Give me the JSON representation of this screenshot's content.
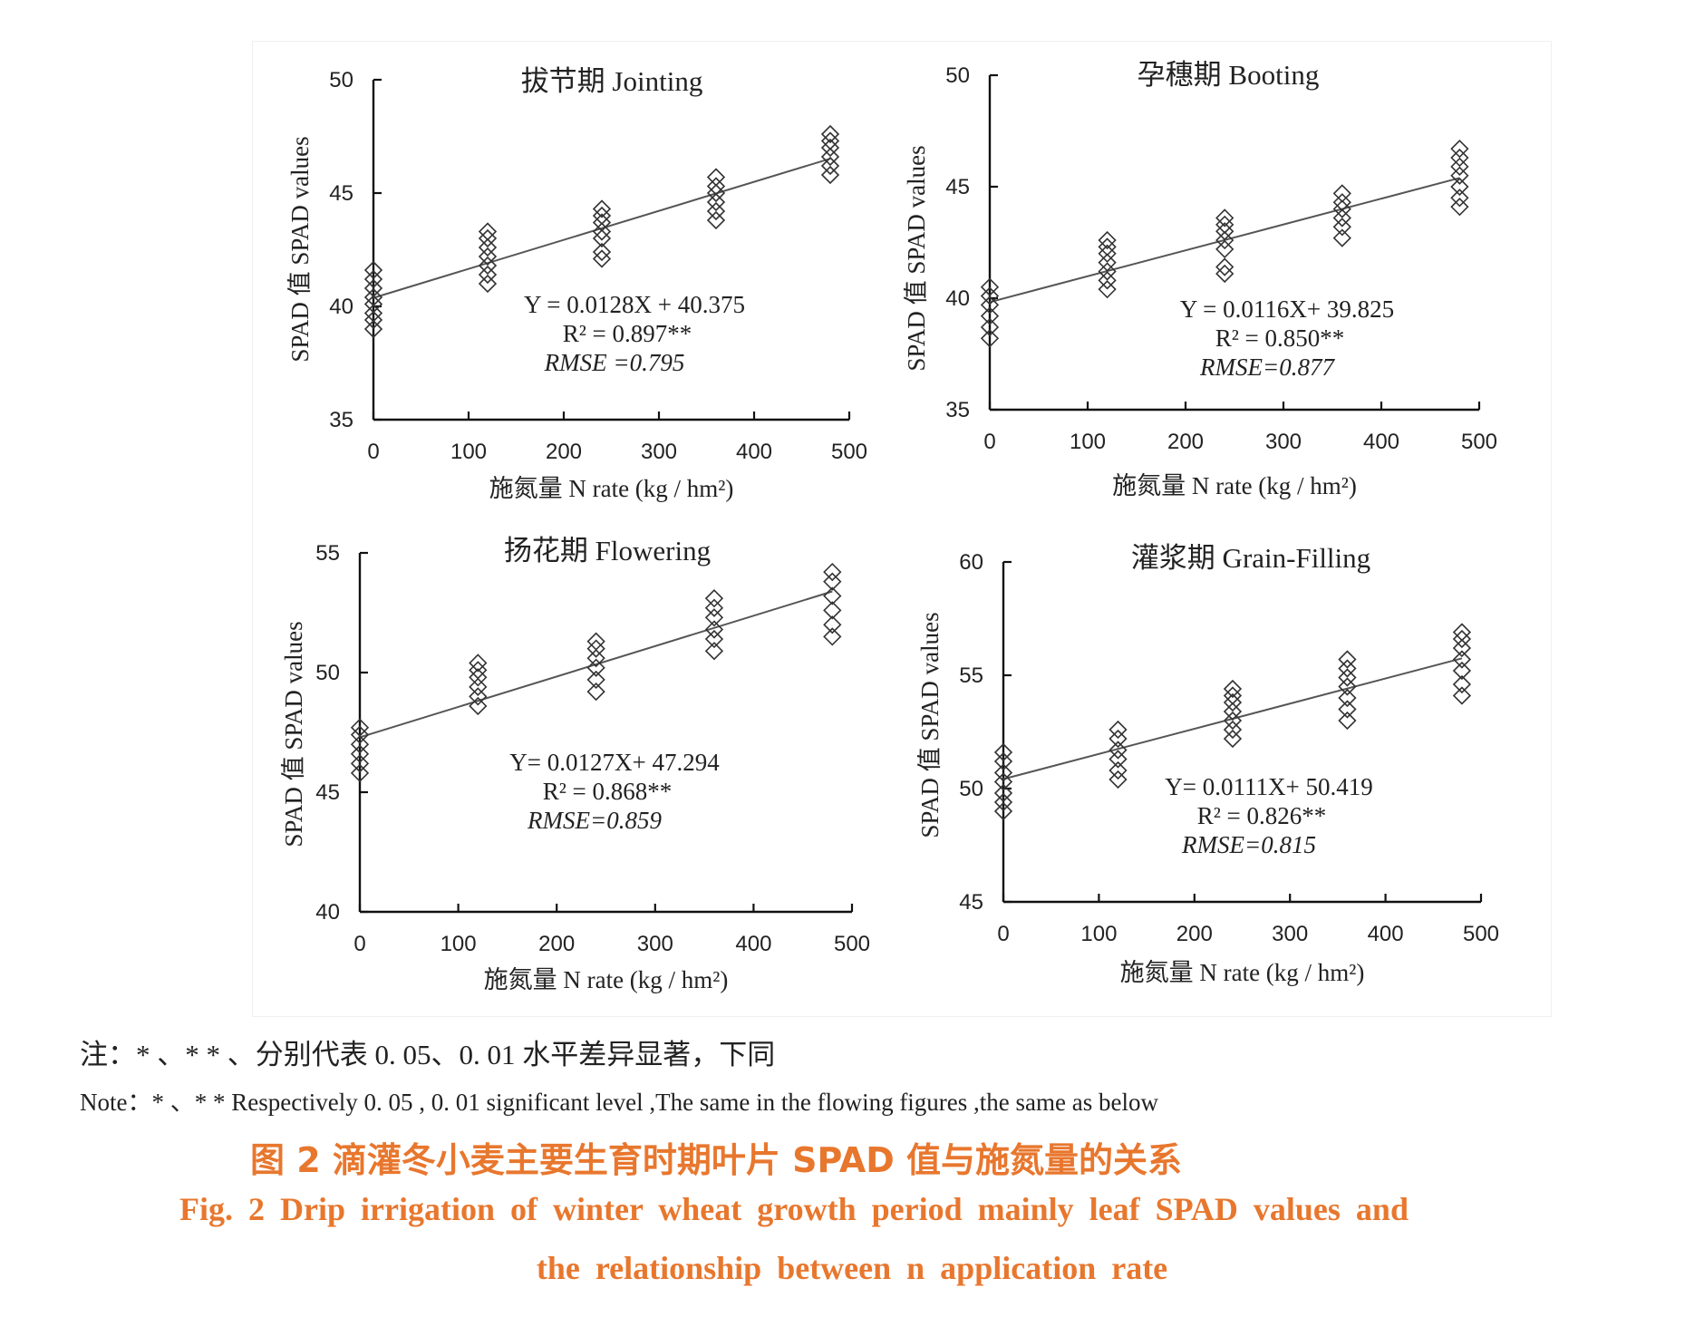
{
  "chart_data": [
    {
      "type": "scatter",
      "title": "拔节期  Jointing",
      "xlabel": "施氮量  N rate (kg / hm²)",
      "ylabel": "SPAD 值 SPAD values",
      "xlim": [
        0,
        500
      ],
      "ylim": [
        35,
        50
      ],
      "xticks": [
        "0",
        "100",
        "200",
        "300",
        "400",
        "500"
      ],
      "yticks": [
        "35",
        "40",
        "45",
        "50"
      ],
      "points": [
        [
          0,
          [
            39.0,
            39.4,
            39.7,
            40.1,
            40.4,
            40.8,
            41.2,
            41.6
          ]
        ],
        [
          120,
          [
            41.0,
            41.4,
            41.8,
            42.2,
            42.6,
            43.0,
            43.3
          ]
        ],
        [
          240,
          [
            42.1,
            42.4,
            43.0,
            43.3,
            43.7,
            44.0,
            44.3
          ]
        ],
        [
          360,
          [
            43.8,
            44.2,
            44.6,
            45.0,
            45.3,
            45.7
          ]
        ],
        [
          480,
          [
            45.8,
            46.2,
            46.6,
            47.0,
            47.3,
            47.6
          ]
        ]
      ],
      "fit": {
        "slope": 0.0128,
        "intercept": 40.375
      },
      "equation": "Y = 0.0128X + 40.375",
      "r2": "R² = 0.897**",
      "rmse": "RMSE =0.795"
    },
    {
      "type": "scatter",
      "title": "孕穗期  Booting",
      "xlabel": "施氮量  N rate (kg / hm²)",
      "ylabel": "SPAD 值 SPAD values",
      "xlim": [
        0,
        500
      ],
      "ylim": [
        35,
        50
      ],
      "xticks": [
        "0",
        "100",
        "200",
        "300",
        "400",
        "500"
      ],
      "yticks": [
        "35",
        "40",
        "45",
        "50"
      ],
      "points": [
        [
          0,
          [
            38.2,
            38.7,
            39.2,
            39.7,
            40.1,
            40.5
          ]
        ],
        [
          120,
          [
            40.4,
            40.8,
            41.2,
            41.6,
            42.0,
            42.3,
            42.6
          ]
        ],
        [
          240,
          [
            41.1,
            41.4,
            42.2,
            42.6,
            43.0,
            43.3,
            43.6
          ]
        ],
        [
          360,
          [
            42.7,
            43.2,
            43.6,
            44.0,
            44.3,
            44.7
          ]
        ],
        [
          480,
          [
            44.1,
            44.5,
            45.0,
            45.5,
            45.9,
            46.3,
            46.7
          ]
        ]
      ],
      "fit": {
        "slope": 0.0116,
        "intercept": 39.825
      },
      "equation": "Y = 0.0116X+ 39.825",
      "r2": "R² = 0.850**",
      "rmse": "RMSE=0.877"
    },
    {
      "type": "scatter",
      "title": "扬花期  Flowering",
      "xlabel": "施氮量  N rate (kg / hm²)",
      "ylabel": "SPAD 值 SPAD values",
      "xlim": [
        0,
        500
      ],
      "ylim": [
        40,
        55
      ],
      "xticks": [
        "0",
        "100",
        "200",
        "300",
        "400",
        "500"
      ],
      "yticks": [
        "40",
        "45",
        "50",
        "55"
      ],
      "points": [
        [
          0,
          [
            45.8,
            46.2,
            46.6,
            47.0,
            47.4,
            47.7
          ]
        ],
        [
          120,
          [
            48.6,
            49.0,
            49.4,
            49.8,
            50.1,
            50.4
          ]
        ],
        [
          240,
          [
            49.2,
            49.7,
            50.2,
            50.6,
            51.0,
            51.3
          ]
        ],
        [
          360,
          [
            50.9,
            51.4,
            51.8,
            52.3,
            52.7,
            53.1
          ]
        ],
        [
          480,
          [
            51.5,
            52.0,
            52.6,
            53.2,
            53.8,
            54.2
          ]
        ]
      ],
      "fit": {
        "slope": 0.0127,
        "intercept": 47.294
      },
      "equation": "Y= 0.0127X+ 47.294",
      "r2": "R² = 0.868**",
      "rmse": "RMSE=0.859"
    },
    {
      "type": "scatter",
      "title": "灌浆期  Grain-Filling",
      "xlabel": "施氮量  N rate (kg / hm²)",
      "ylabel": "SPAD 值 SPAD values",
      "xlim": [
        0,
        500
      ],
      "ylim": [
        45,
        60
      ],
      "xticks": [
        "0",
        "100",
        "200",
        "300",
        "400",
        "500"
      ],
      "yticks": [
        "45",
        "50",
        "55",
        "60"
      ],
      "points": [
        [
          0,
          [
            49.0,
            49.4,
            49.8,
            50.3,
            50.7,
            51.2,
            51.6
          ]
        ],
        [
          120,
          [
            50.4,
            50.8,
            51.3,
            51.7,
            52.2,
            52.6
          ]
        ],
        [
          240,
          [
            52.2,
            52.6,
            53.0,
            53.4,
            53.8,
            54.1,
            54.4
          ]
        ],
        [
          360,
          [
            53.0,
            53.5,
            54.0,
            54.5,
            54.9,
            55.3,
            55.7
          ]
        ],
        [
          480,
          [
            54.1,
            54.6,
            55.2,
            55.7,
            56.2,
            56.6,
            56.9
          ]
        ]
      ],
      "fit": {
        "slope": 0.0111,
        "intercept": 50.419
      },
      "equation": "Y= 0.0111X+ 50.419",
      "r2": "R² = 0.826**",
      "rmse": "RMSE=0.815"
    }
  ],
  "notes": {
    "zh": "注：* 、* * 、分别代表 0. 05、0. 01 水平差异显著，下同",
    "en": "Note：* 、* * Respectively 0. 05 , 0. 01 significant level ,The same in the flowing figures ,the same as below"
  },
  "caption": {
    "zh": "图 2    滴灌冬小麦主要生育时期叶片 SPAD 值与施氮量的关系",
    "en_line1": "Fig. 2    Drip irrigation of winter wheat growth period mainly leaf SPAD values and",
    "en_line2": "the relationship between n application rate"
  }
}
